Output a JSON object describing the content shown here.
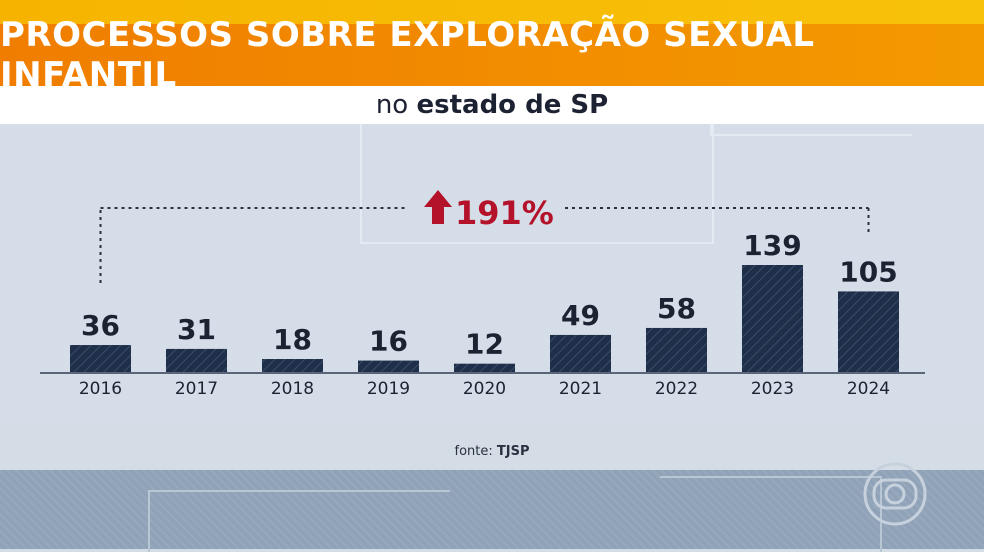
{
  "header": {
    "title": "PROCESSOS SOBRE EXPLORAÇÃO SEXUAL INFANTIL",
    "subtitle_prefix": "no",
    "subtitle_bold": "estado de SP"
  },
  "source": {
    "prefix": "fonte:",
    "name": "TJSP"
  },
  "colors": {
    "bar": "#1f2f4a",
    "arrow": "#b3122a",
    "axis": "#5a6678",
    "title_band": "#f07d00",
    "top_band": "#f6b400"
  },
  "chart_data": {
    "type": "bar",
    "categories": [
      "2016",
      "2017",
      "2018",
      "2019",
      "2020",
      "2021",
      "2022",
      "2023",
      "2024"
    ],
    "values": [
      36,
      31,
      18,
      16,
      12,
      49,
      58,
      139,
      105
    ],
    "data_labels": [
      "36",
      "31",
      "18",
      "16",
      "12",
      "49",
      "58",
      "139",
      "105"
    ],
    "title": "PROCESSOS SOBRE EXPLORAÇÃO SEXUAL INFANTIL",
    "subtitle": "no estado de SP",
    "ylim": [
      0,
      139
    ],
    "grid": false,
    "annotation": {
      "text": "191%",
      "icon": "up-arrow-icon",
      "from": "2016",
      "to": "2024"
    }
  }
}
